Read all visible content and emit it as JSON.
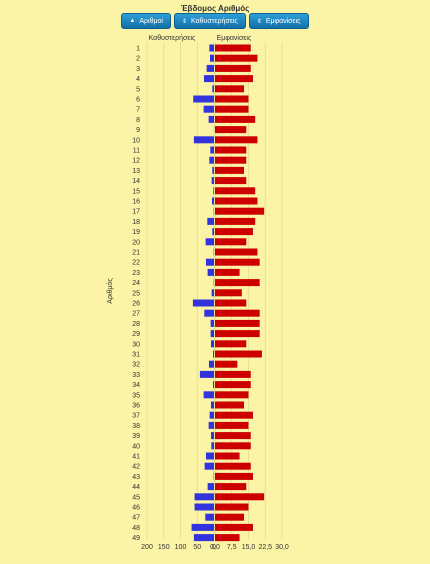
{
  "title": "Έβδομος Αριθμός",
  "buttons": [
    {
      "label": "Αριθμοί",
      "icon": "sort-up-icon"
    },
    {
      "label": "Καθυστερήσεις",
      "icon": "sort-icon"
    },
    {
      "label": "Εμφανίσεις",
      "icon": "sort-icon"
    }
  ],
  "chart_data": [
    {
      "type": "bar",
      "orientation": "horizontal",
      "title": "Καθυστερήσεις",
      "ylabel": "Αριθμός",
      "xlim": [
        200,
        0
      ],
      "xticks": [
        "200",
        "150",
        "100",
        "50",
        "0"
      ],
      "color": "#3333dd",
      "categories": [
        "1",
        "2",
        "3",
        "4",
        "5",
        "6",
        "7",
        "8",
        "9",
        "10",
        "11",
        "12",
        "13",
        "14",
        "15",
        "16",
        "17",
        "18",
        "19",
        "20",
        "21",
        "22",
        "23",
        "24",
        "25",
        "26",
        "27",
        "28",
        "29",
        "30",
        "31",
        "32",
        "33",
        "34",
        "35",
        "36",
        "37",
        "38",
        "39",
        "40",
        "41",
        "42",
        "43",
        "44",
        "45",
        "46",
        "47",
        "48",
        "49"
      ],
      "values": [
        14,
        12,
        22,
        30,
        5,
        62,
        31,
        16,
        0,
        60,
        11,
        14,
        5,
        7,
        2,
        6,
        1,
        20,
        5,
        25,
        1,
        24,
        19,
        1,
        7,
        63,
        29,
        10,
        10,
        9,
        3,
        15,
        42,
        3,
        31,
        9,
        13,
        16,
        9,
        8,
        24,
        28,
        1,
        19,
        58,
        58,
        26,
        67,
        60
      ]
    },
    {
      "type": "bar",
      "orientation": "horizontal",
      "title": "Εμφανίσεις",
      "xlim": [
        0,
        30
      ],
      "xticks": [
        "0,0",
        "7,5",
        "15,0",
        "22,5",
        "30,0"
      ],
      "color": "#cc0000",
      "categories": [
        "1",
        "2",
        "3",
        "4",
        "5",
        "6",
        "7",
        "8",
        "9",
        "10",
        "11",
        "12",
        "13",
        "14",
        "15",
        "16",
        "17",
        "18",
        "19",
        "20",
        "21",
        "22",
        "23",
        "24",
        "25",
        "26",
        "27",
        "28",
        "29",
        "30",
        "31",
        "32",
        "33",
        "34",
        "35",
        "36",
        "37",
        "38",
        "39",
        "40",
        "41",
        "42",
        "43",
        "44",
        "45",
        "46",
        "47",
        "48",
        "49"
      ],
      "values": [
        16,
        19,
        16,
        17,
        13,
        15,
        15,
        18,
        14,
        19,
        14,
        14,
        13,
        14,
        18,
        19,
        22,
        18,
        17,
        14,
        19,
        20,
        11,
        20,
        12,
        14,
        20,
        20,
        20,
        14,
        21,
        10,
        16,
        16,
        15,
        13,
        17,
        15,
        16,
        16,
        11,
        16,
        17,
        14,
        22,
        15,
        13,
        17,
        11
      ]
    }
  ]
}
